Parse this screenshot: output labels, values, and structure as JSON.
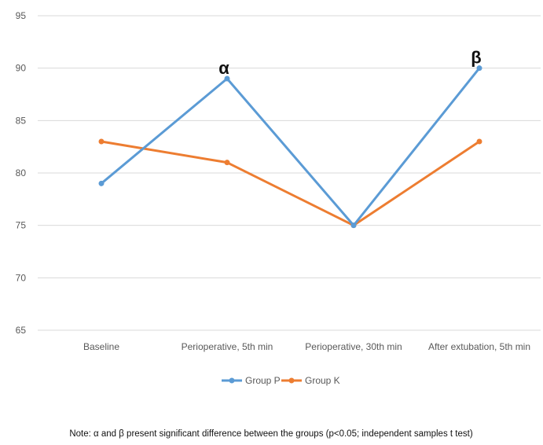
{
  "chart_data": {
    "type": "line",
    "categories": [
      "Baseline",
      "Perioperative, 5th min",
      "Perioperative, 30th min",
      "After extubation, 5th min"
    ],
    "series": [
      {
        "name": "Group P",
        "values": [
          79,
          89,
          75,
          90
        ],
        "color": "#5B9BD5"
      },
      {
        "name": "Group K",
        "values": [
          83,
          81,
          75,
          83
        ],
        "color": "#ED7D31"
      }
    ],
    "ylim": [
      65,
      95
    ],
    "yticks": [
      65,
      70,
      75,
      80,
      85,
      90,
      95
    ],
    "grid": true,
    "legend_position": "bottom",
    "annotations": [
      {
        "text": "α",
        "category_index": 1,
        "value": 89
      },
      {
        "text": "β",
        "category_index": 3,
        "value": 90
      }
    ],
    "note": "Note: α and β present significant difference between the groups (p<0.05; independent samples t test)"
  }
}
